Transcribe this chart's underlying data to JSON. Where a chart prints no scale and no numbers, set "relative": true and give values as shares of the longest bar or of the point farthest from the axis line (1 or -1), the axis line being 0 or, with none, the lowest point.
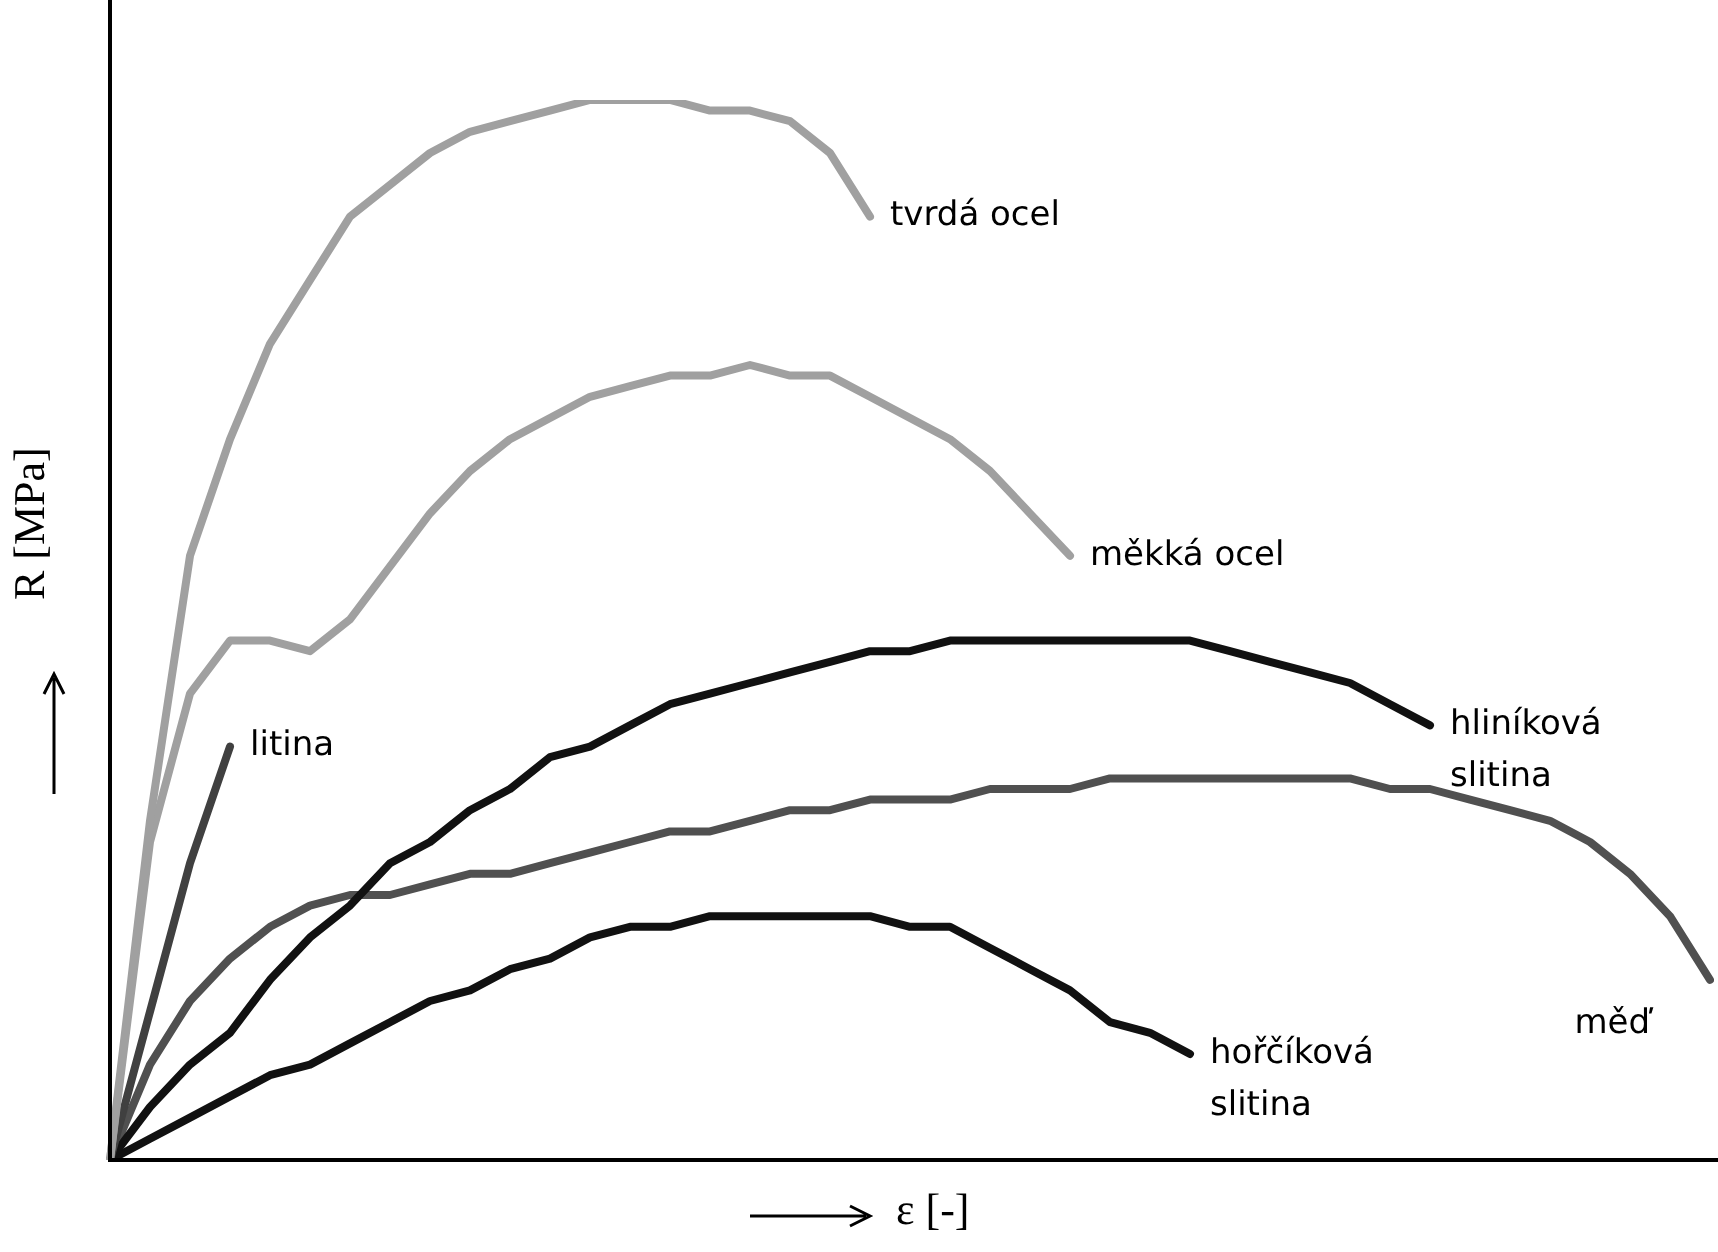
{
  "chart_data": {
    "type": "line",
    "relative": true,
    "xlabel": "ε [-]",
    "ylabel": "R [MPa]",
    "legend": false,
    "marker": "none",
    "categories": [
      null,
      null,
      null,
      null,
      null,
      null,
      null,
      null,
      null,
      null,
      null,
      null,
      null,
      null,
      null,
      null,
      null,
      null,
      null,
      null,
      null,
      null,
      null,
      null,
      null,
      null,
      null,
      null,
      null,
      null,
      null,
      null,
      null,
      null,
      null,
      null,
      null,
      null,
      null,
      null,
      null
    ],
    "series": [
      {
        "name": "tvrdá ocel",
        "color": "#a0a0a0",
        "values": [
          0,
          0.32,
          0.57,
          0.68,
          0.77,
          0.83,
          0.89,
          0.92,
          0.95,
          0.97,
          0.98,
          0.99,
          1,
          1,
          1,
          0.99,
          0.99,
          0.98,
          0.95,
          0.89,
          null,
          null,
          null,
          null,
          null,
          null,
          null,
          null,
          null,
          null,
          null,
          null,
          null,
          null,
          null,
          null,
          null,
          null,
          null,
          null,
          null
        ]
      },
      {
        "name": "měkká ocel",
        "color": "#a0a0a0",
        "values": [
          0,
          0.3,
          0.44,
          0.49,
          0.49,
          0.48,
          0.51,
          0.56,
          0.61,
          0.65,
          0.68,
          0.7,
          0.72,
          0.73,
          0.74,
          0.74,
          0.75,
          0.74,
          0.74,
          0.72,
          0.7,
          0.68,
          0.65,
          0.61,
          0.57,
          null,
          null,
          null,
          null,
          null,
          null,
          null,
          null,
          null,
          null,
          null,
          null,
          null,
          null,
          null,
          null
        ]
      },
      {
        "name": "litina",
        "color": "#404040",
        "values": [
          0,
          0.14,
          0.28,
          0.39,
          null,
          null,
          null,
          null,
          null,
          null,
          null,
          null,
          null,
          null,
          null,
          null,
          null,
          null,
          null,
          null,
          null,
          null,
          null,
          null,
          null,
          null,
          null,
          null,
          null,
          null,
          null,
          null,
          null,
          null,
          null,
          null,
          null,
          null,
          null,
          null,
          null
        ]
      },
      {
        "name": "hliníková slitina",
        "color": "#111111",
        "values": [
          0,
          0.05,
          0.09,
          0.12,
          0.17,
          0.21,
          0.24,
          0.28,
          0.3,
          0.33,
          0.35,
          0.38,
          0.39,
          0.41,
          0.43,
          0.44,
          0.45,
          0.46,
          0.47,
          0.48,
          0.48,
          0.49,
          0.49,
          0.49,
          0.49,
          0.49,
          0.49,
          0.49,
          0.48,
          0.47,
          0.46,
          0.45,
          0.43,
          0.41,
          null,
          null,
          null,
          null,
          null,
          null,
          null
        ]
      },
      {
        "name": "měď",
        "color": "#505050",
        "values": [
          0,
          0.09,
          0.15,
          0.19,
          0.22,
          0.24,
          0.25,
          0.25,
          0.26,
          0.27,
          0.27,
          0.28,
          0.29,
          0.3,
          0.31,
          0.31,
          0.32,
          0.33,
          0.33,
          0.34,
          0.34,
          0.34,
          0.35,
          0.35,
          0.35,
          0.36,
          0.36,
          0.36,
          0.36,
          0.36,
          0.36,
          0.36,
          0.35,
          0.35,
          0.34,
          0.33,
          0.32,
          0.3,
          0.27,
          0.23,
          0.17
        ]
      },
      {
        "name": "hořčíková slitina",
        "color": "#111111",
        "values": [
          0,
          0.02,
          0.04,
          0.06,
          0.08,
          0.09,
          0.11,
          0.13,
          0.15,
          0.16,
          0.18,
          0.19,
          0.21,
          0.22,
          0.22,
          0.23,
          0.23,
          0.23,
          0.23,
          0.23,
          0.22,
          0.22,
          0.2,
          0.18,
          0.16,
          0.13,
          0.12,
          0.1,
          null,
          null,
          null,
          null,
          null,
          null,
          null,
          null,
          null,
          null,
          null,
          null,
          null
        ]
      }
    ]
  }
}
